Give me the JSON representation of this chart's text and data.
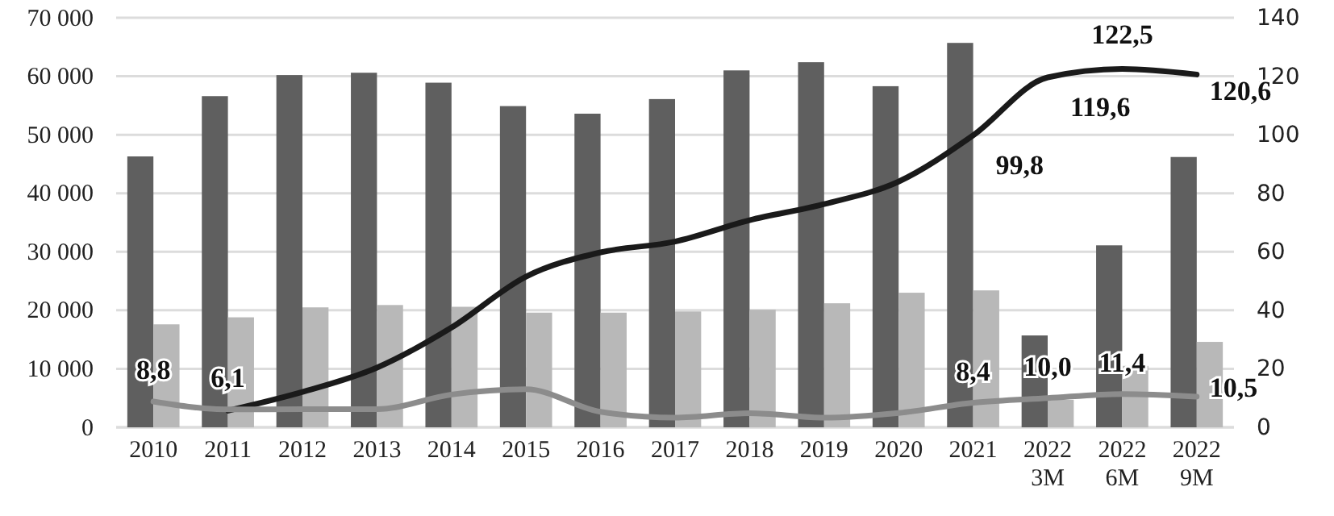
{
  "chart_data": {
    "type": "bar",
    "categories": [
      "2010",
      "2011",
      "2012",
      "2013",
      "2014",
      "2015",
      "2016",
      "2017",
      "2018",
      "2019",
      "2020",
      "2021",
      "2022 3M",
      "2022 6M",
      "2022 9M"
    ],
    "series": [
      {
        "color": "#5f5f5f",
        "values": [
          46300,
          56600,
          60200,
          60600,
          58900,
          54900,
          53600,
          56100,
          61000,
          62400,
          58300,
          65700,
          15700,
          31100,
          46200
        ]
      },
      {
        "color": "#b8b8b8",
        "values": [
          17600,
          18800,
          20500,
          20900,
          20600,
          19600,
          19600,
          19800,
          20100,
          21200,
          23000,
          23400,
          4700,
          10500,
          14600
        ]
      },
      {
        "type": "line",
        "axis": "y2",
        "color": "#1a1a1a",
        "values": [
          null,
          5.7,
          12.1,
          20.4,
          34.1,
          51.5,
          59.8,
          63.5,
          70.8,
          76.3,
          84.0,
          99.8,
          119.6,
          122.5,
          120.6
        ],
        "value_labels": [
          null,
          null,
          null,
          null,
          null,
          null,
          null,
          null,
          null,
          null,
          null,
          "99,8",
          "119,6",
          "122,5",
          "120,6"
        ]
      },
      {
        "type": "line",
        "axis": "y2",
        "color": "#8c8c8c",
        "values": [
          8.8,
          6.1,
          6.2,
          6.2,
          11.2,
          13.0,
          5.3,
          3.3,
          4.8,
          3.3,
          4.9,
          8.4,
          10.0,
          11.4,
          10.5
        ],
        "value_labels": [
          "8,8",
          "6,1",
          null,
          null,
          null,
          null,
          null,
          null,
          null,
          null,
          null,
          "8,4",
          "10,0",
          "11,4",
          "10,5"
        ]
      }
    ],
    "ylim": [
      0,
      70000
    ],
    "yticks": [
      0,
      {
        "value": 10000,
        "label": "10 000"
      },
      {
        "value": 20000,
        "label": "20 000"
      },
      {
        "value": 30000,
        "label": "30 000"
      },
      {
        "value": 40000,
        "label": "40 000"
      },
      {
        "value": 50000,
        "label": "50 000"
      },
      {
        "value": 60000,
        "label": "60 000"
      },
      {
        "value": 70000,
        "label": "70 000"
      }
    ],
    "y2lim": [
      0,
      140
    ],
    "y2ticks": [
      0,
      20,
      40,
      60,
      80,
      100,
      120,
      140
    ],
    "grid": "y",
    "line_style": "solid"
  }
}
